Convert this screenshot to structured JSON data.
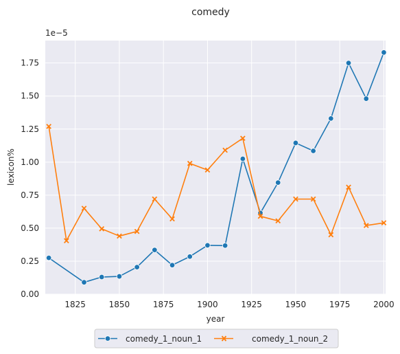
{
  "chart_data": {
    "type": "line",
    "title": "comedy",
    "xlabel": "year",
    "ylabel": "lexicon%",
    "offset_text": "1e−5",
    "x": [
      1810,
      1820,
      1830,
      1840,
      1850,
      1860,
      1870,
      1880,
      1890,
      1900,
      1910,
      1920,
      1930,
      1940,
      1950,
      1960,
      1970,
      1980,
      1990,
      2000
    ],
    "xlim": [
      1808,
      2001
    ],
    "ylim": [
      0,
      1.92
    ],
    "x_ticks": [
      1825,
      1850,
      1875,
      1900,
      1925,
      1950,
      1975,
      2000
    ],
    "y_ticks": [
      0.0,
      0.25,
      0.5,
      0.75,
      1.0,
      1.25,
      1.5,
      1.75
    ],
    "y_tick_labels": [
      "0.00",
      "0.25",
      "0.50",
      "0.75",
      "1.00",
      "1.25",
      "1.50",
      "1.75"
    ],
    "grid": true,
    "legend_position": "bottom-center",
    "series": [
      {
        "name": "comedy_1_noun_1",
        "color": "#1f77b4",
        "marker": "circle",
        "points": [
          [
            1810,
            0.275
          ],
          [
            1830,
            0.09
          ],
          [
            1840,
            0.13
          ],
          [
            1850,
            0.135
          ],
          [
            1860,
            0.205
          ],
          [
            1870,
            0.335
          ],
          [
            1880,
            0.22
          ],
          [
            1890,
            0.285
          ],
          [
            1900,
            0.37
          ],
          [
            1910,
            0.368
          ],
          [
            1920,
            1.025
          ],
          [
            1930,
            0.615
          ],
          [
            1940,
            0.845
          ],
          [
            1950,
            1.145
          ],
          [
            1960,
            1.085
          ],
          [
            1970,
            1.33
          ],
          [
            1980,
            1.75
          ],
          [
            1990,
            1.48
          ],
          [
            2000,
            1.83
          ]
        ]
      },
      {
        "name": "comedy_1_noun_2",
        "color": "#ff7f0e",
        "marker": "x",
        "points": [
          [
            1810,
            1.27
          ],
          [
            1820,
            0.405
          ],
          [
            1830,
            0.65
          ],
          [
            1840,
            0.495
          ],
          [
            1850,
            0.44
          ],
          [
            1860,
            0.475
          ],
          [
            1870,
            0.72
          ],
          [
            1880,
            0.57
          ],
          [
            1890,
            0.99
          ],
          [
            1900,
            0.94
          ],
          [
            1910,
            1.09
          ],
          [
            1920,
            1.18
          ],
          [
            1930,
            0.59
          ],
          [
            1940,
            0.555
          ],
          [
            1950,
            0.72
          ],
          [
            1960,
            0.72
          ],
          [
            1970,
            0.45
          ],
          [
            1980,
            0.81
          ],
          [
            1990,
            0.52
          ],
          [
            2000,
            0.54
          ]
        ]
      }
    ]
  }
}
